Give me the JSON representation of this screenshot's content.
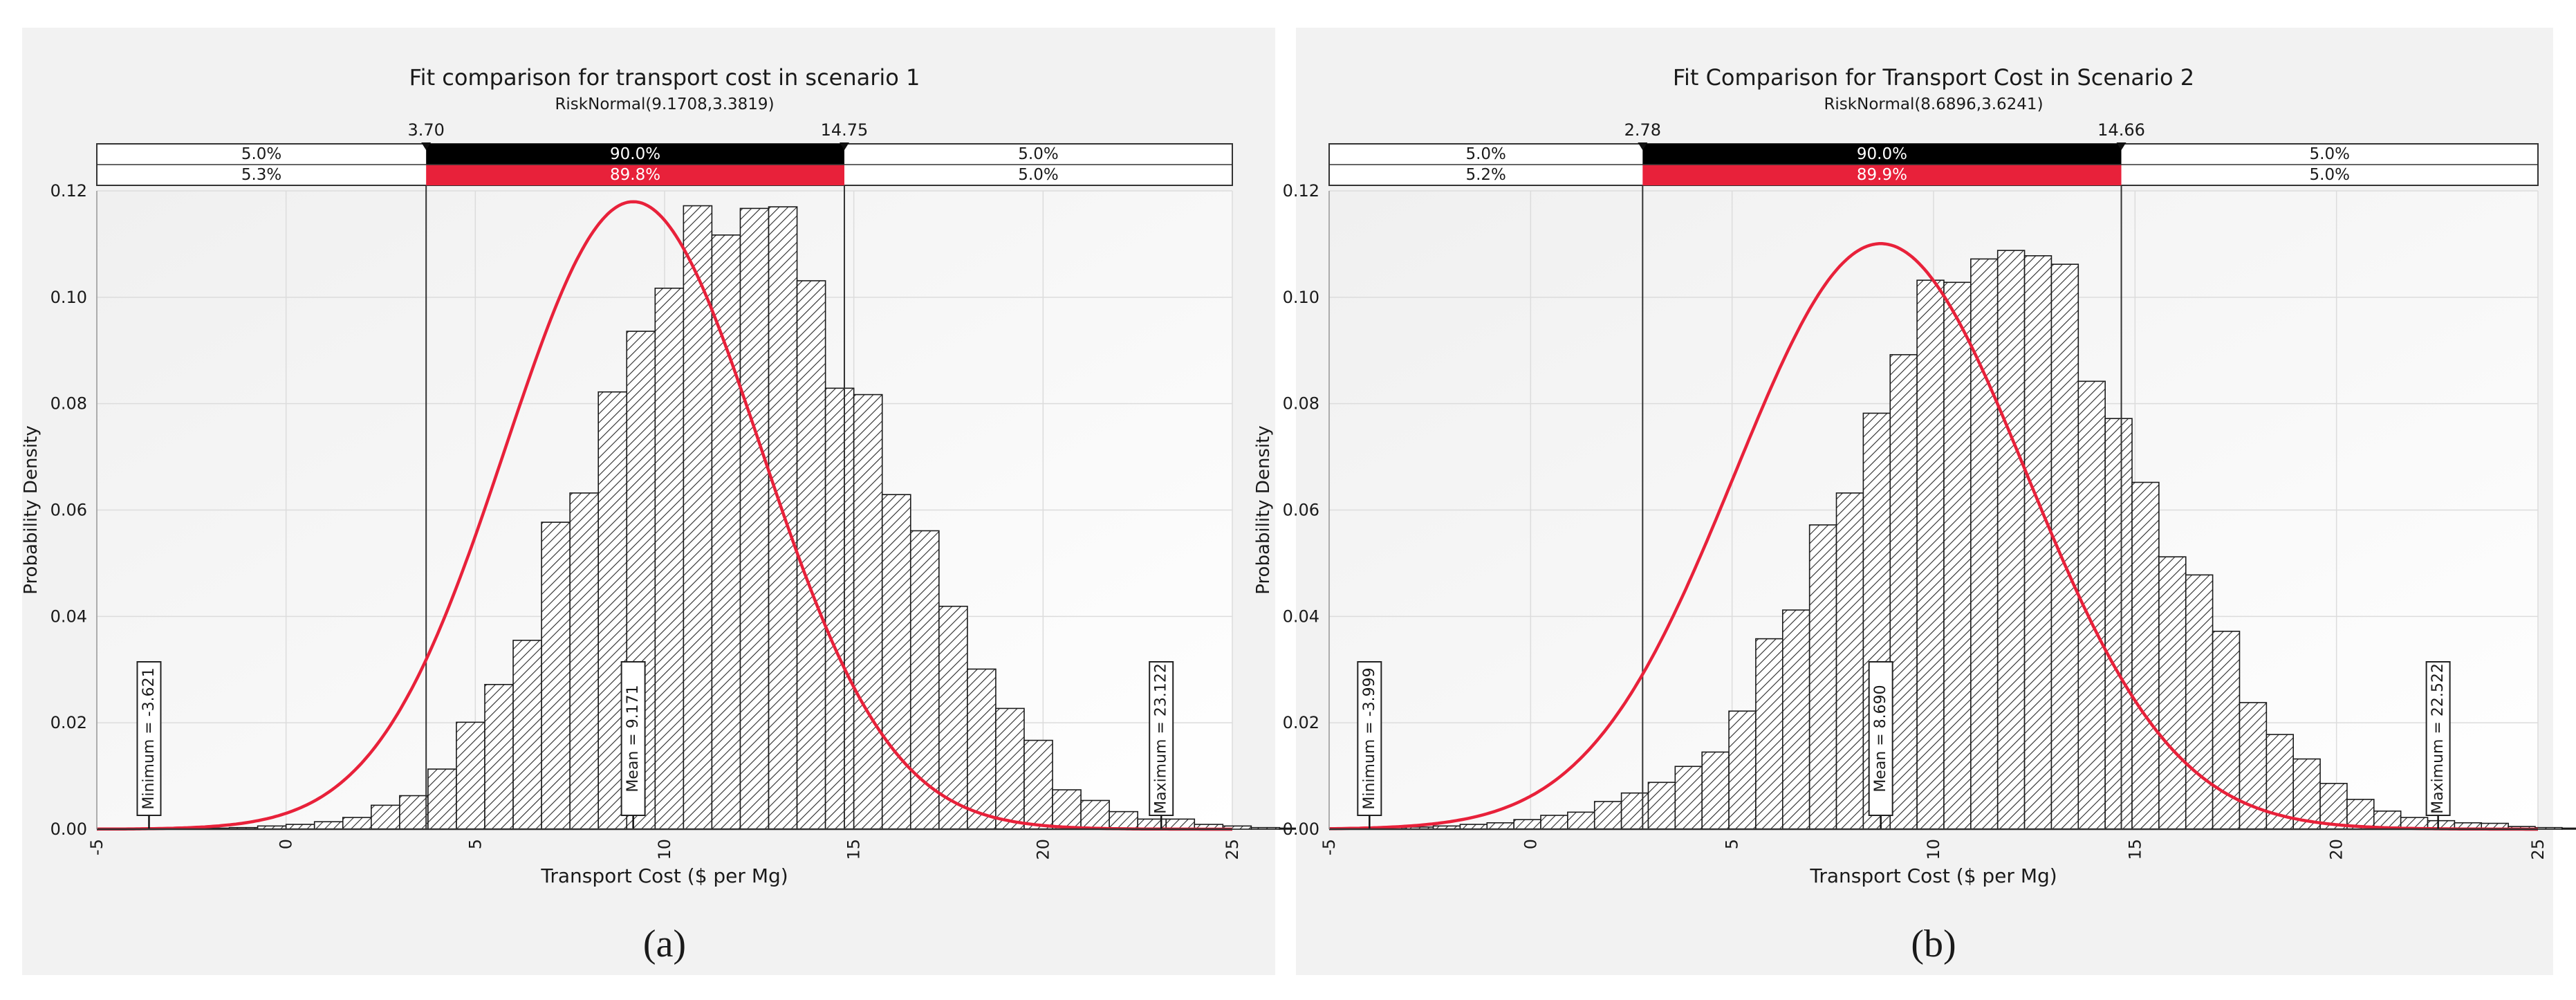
{
  "chart_data": [
    {
      "type": "bar",
      "panel_label": "(a)",
      "title": "Fit comparison for transport cost in scenario 1",
      "subtitle": "RiskNormal(9.1708,3.3819)",
      "xlabel": "Transport Cost ($ per Mg)",
      "ylabel": "Probability Density",
      "xlim": [
        -5,
        25
      ],
      "ylim": [
        0,
        0.12
      ],
      "xticks": [
        "-5",
        "0",
        "5",
        "10",
        "15",
        "20",
        "25"
      ],
      "yticks": [
        "0.00",
        "0.02",
        "0.04",
        "0.06",
        "0.08",
        "0.10",
        "0.12"
      ],
      "grid": true,
      "bin_start": -3.75,
      "bin_width": 0.75,
      "values": [
        0.0002,
        0.0002,
        0.0002,
        0.0003,
        0.0006,
        0.0009,
        0.0014,
        0.0022,
        0.0045,
        0.0063,
        0.0113,
        0.0201,
        0.0272,
        0.0355,
        0.0577,
        0.0632,
        0.0822,
        0.0936,
        0.1017,
        0.1172,
        0.1117,
        0.1167,
        0.117,
        0.1031,
        0.0829,
        0.0817,
        0.0629,
        0.0561,
        0.0419,
        0.0301,
        0.0227,
        0.0167,
        0.0074,
        0.0054,
        0.0033,
        0.0019,
        0.0019,
        0.0009,
        0.0006,
        0.0003,
        0.0002,
        0.0002,
        0.0001,
        0.0001
      ],
      "fit_curve": {
        "name": "RiskNormal(9.1708,3.3819)",
        "mean": 9.1708,
        "sd": 3.3819,
        "color": "#e8213a"
      },
      "delimiters": {
        "left_value": 3.7,
        "right_value": 14.75,
        "left_label": "3.70",
        "right_label": "14.75",
        "row1": [
          "5.0%",
          "90.0%",
          "5.0%"
        ],
        "row2": [
          "5.3%",
          "89.8%",
          "5.0%"
        ]
      },
      "markers": [
        {
          "label": "Minimum = -3.621",
          "x": -3.621
        },
        {
          "label": "Mean = 9.171",
          "x": 9.171
        },
        {
          "label": "Maximum = 23.122",
          "x": 23.122
        }
      ]
    },
    {
      "type": "bar",
      "panel_label": "(b)",
      "title": "Fit Comparison for Transport Cost in Scenario 2",
      "subtitle": "RiskNormal(8.6896,3.6241)",
      "xlabel": "Transport Cost ($ per Mg)",
      "ylabel": "Probability Density",
      "xlim": [
        -5,
        25
      ],
      "ylim": [
        0,
        0.12
      ],
      "xticks": [
        "-5",
        "0",
        "5",
        "10",
        "15",
        "20",
        "25"
      ],
      "yticks": [
        "0.00",
        "0.02",
        "0.04",
        "0.06",
        "0.08",
        "0.10",
        "0.12"
      ],
      "grid": true,
      "bin_start": -3.75,
      "bin_width": 0.667,
      "values": [
        0.0003,
        0.0004,
        0.0006,
        0.0009,
        0.0012,
        0.0018,
        0.0026,
        0.0032,
        0.0052,
        0.0068,
        0.0088,
        0.0118,
        0.0145,
        0.0222,
        0.0358,
        0.0412,
        0.0572,
        0.0632,
        0.0782,
        0.0892,
        0.1032,
        0.1028,
        0.1072,
        0.1088,
        0.1078,
        0.1062,
        0.0842,
        0.0772,
        0.0652,
        0.0512,
        0.0478,
        0.0372,
        0.0238,
        0.0178,
        0.0132,
        0.0086,
        0.0056,
        0.0034,
        0.0022,
        0.0016,
        0.0012,
        0.0011,
        0.0005,
        0.0003,
        0.0002,
        0.0001
      ],
      "fit_curve": {
        "name": "RiskNormal(8.6896,3.6241)",
        "mean": 8.6896,
        "sd": 3.6241,
        "color": "#e8213a"
      },
      "delimiters": {
        "left_value": 2.78,
        "right_value": 14.66,
        "left_label": "2.78",
        "right_label": "14.66",
        "row1": [
          "5.0%",
          "90.0%",
          "5.0%"
        ],
        "row2": [
          "5.2%",
          "89.9%",
          "5.0%"
        ]
      },
      "markers": [
        {
          "label": "Minimum = -3.999",
          "x": -3.999
        },
        {
          "label": "Mean = 8.690",
          "x": 8.69
        },
        {
          "label": "Maximum = 22.522",
          "x": 22.522
        }
      ]
    }
  ]
}
